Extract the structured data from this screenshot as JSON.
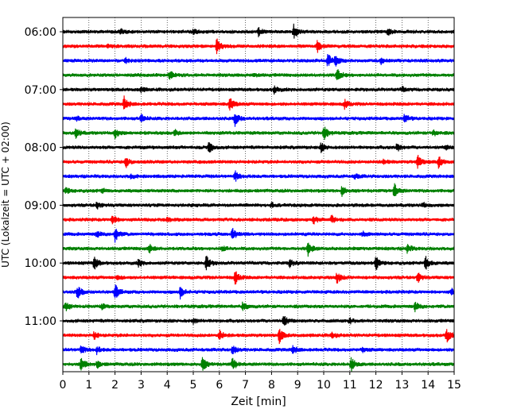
{
  "chart_data": {
    "type": "line",
    "title": "",
    "xlabel": "Zeit  [min]",
    "ylabel": "UTC (Lokalzeit = UTC + 02:00)",
    "xlim": [
      0,
      15
    ],
    "xticks": [
      0,
      1,
      2,
      3,
      4,
      5,
      6,
      7,
      8,
      9,
      10,
      11,
      12,
      13,
      14,
      15
    ],
    "xtick_labels": [
      "0",
      "1",
      "2",
      "3",
      "4",
      "5",
      "6",
      "7",
      "8",
      "9",
      "10",
      "11",
      "12",
      "13",
      "14",
      "15"
    ],
    "vertical_grid": true,
    "yticks": [
      {
        "label": "06:00",
        "trace": 0
      },
      {
        "label": "07:00",
        "trace": 4
      },
      {
        "label": "08:00",
        "trace": 8
      },
      {
        "label": "09:00",
        "trace": 12
      },
      {
        "label": "10:00",
        "trace": 16
      },
      {
        "label": "11:00",
        "trace": 20
      }
    ],
    "colors": [
      "#000000",
      "#ff0000",
      "#0000ff",
      "#008000"
    ],
    "traces": [
      {
        "start": "06:00",
        "color": "#000000",
        "events": [
          {
            "t": 8.85,
            "a": 1.0
          },
          {
            "t": 7.5,
            "a": 0.5
          },
          {
            "t": 12.45,
            "a": 0.6
          },
          {
            "t": 2.2,
            "a": 0.4
          },
          {
            "t": 5.0,
            "a": 0.3
          }
        ]
      },
      {
        "start": "06:15",
        "color": "#ff0000",
        "events": [
          {
            "t": 5.9,
            "a": 1.0
          },
          {
            "t": 9.75,
            "a": 0.8
          },
          {
            "t": 1.7,
            "a": 0.3
          }
        ]
      },
      {
        "start": "06:30",
        "color": "#0000ff",
        "events": [
          {
            "t": 10.15,
            "a": 1.0
          },
          {
            "t": 10.45,
            "a": 0.6
          },
          {
            "t": 12.2,
            "a": 0.4
          },
          {
            "t": 2.4,
            "a": 0.3
          }
        ]
      },
      {
        "start": "06:45",
        "color": "#008000",
        "events": [
          {
            "t": 10.5,
            "a": 1.0
          },
          {
            "t": 4.1,
            "a": 0.7
          },
          {
            "t": 7.3,
            "a": 0.3
          }
        ]
      },
      {
        "start": "07:00",
        "color": "#000000",
        "events": [
          {
            "t": 8.1,
            "a": 0.5
          },
          {
            "t": 3.0,
            "a": 0.3
          },
          {
            "t": 13.0,
            "a": 0.3
          }
        ]
      },
      {
        "start": "07:15",
        "color": "#ff0000",
        "events": [
          {
            "t": 2.35,
            "a": 1.0
          },
          {
            "t": 6.4,
            "a": 1.0
          },
          {
            "t": 10.8,
            "a": 0.6
          }
        ]
      },
      {
        "start": "07:30",
        "color": "#0000ff",
        "events": [
          {
            "t": 6.6,
            "a": 1.0
          },
          {
            "t": 3.0,
            "a": 0.6
          },
          {
            "t": 13.1,
            "a": 0.6
          },
          {
            "t": 0.5,
            "a": 0.3
          }
        ]
      },
      {
        "start": "07:45",
        "color": "#008000",
        "events": [
          {
            "t": 0.5,
            "a": 0.7
          },
          {
            "t": 2.0,
            "a": 0.7
          },
          {
            "t": 10.0,
            "a": 1.0
          },
          {
            "t": 4.3,
            "a": 0.4
          },
          {
            "t": 14.2,
            "a": 0.4
          }
        ]
      },
      {
        "start": "08:00",
        "color": "#000000",
        "events": [
          {
            "t": 5.6,
            "a": 1.0
          },
          {
            "t": 9.9,
            "a": 0.6
          },
          {
            "t": 12.8,
            "a": 0.6
          },
          {
            "t": 14.7,
            "a": 0.3
          }
        ]
      },
      {
        "start": "08:15",
        "color": "#ff0000",
        "events": [
          {
            "t": 2.4,
            "a": 0.8
          },
          {
            "t": 13.6,
            "a": 1.0
          },
          {
            "t": 14.4,
            "a": 0.8
          },
          {
            "t": 12.3,
            "a": 0.3
          }
        ]
      },
      {
        "start": "08:30",
        "color": "#0000ff",
        "events": [
          {
            "t": 6.6,
            "a": 0.7
          },
          {
            "t": 11.2,
            "a": 0.4
          },
          {
            "t": 2.6,
            "a": 0.3
          }
        ]
      },
      {
        "start": "08:45",
        "color": "#008000",
        "events": [
          {
            "t": 12.7,
            "a": 1.0
          },
          {
            "t": 10.7,
            "a": 0.7
          },
          {
            "t": 0.1,
            "a": 0.5
          },
          {
            "t": 1.5,
            "a": 0.3
          }
        ]
      },
      {
        "start": "09:00",
        "color": "#000000",
        "events": [
          {
            "t": 1.3,
            "a": 0.5
          },
          {
            "t": 8.0,
            "a": 0.3
          },
          {
            "t": 13.8,
            "a": 0.3
          }
        ]
      },
      {
        "start": "09:15",
        "color": "#ff0000",
        "events": [
          {
            "t": 1.9,
            "a": 0.7
          },
          {
            "t": 9.6,
            "a": 0.6
          },
          {
            "t": 10.3,
            "a": 0.5
          },
          {
            "t": 4.0,
            "a": 0.3
          }
        ]
      },
      {
        "start": "09:30",
        "color": "#0000ff",
        "events": [
          {
            "t": 2.0,
            "a": 1.0
          },
          {
            "t": 6.5,
            "a": 0.8
          },
          {
            "t": 1.3,
            "a": 0.4
          },
          {
            "t": 11.5,
            "a": 0.3
          }
        ]
      },
      {
        "start": "09:45",
        "color": "#008000",
        "events": [
          {
            "t": 9.4,
            "a": 1.0
          },
          {
            "t": 3.3,
            "a": 0.7
          },
          {
            "t": 13.2,
            "a": 0.6
          },
          {
            "t": 6.1,
            "a": 0.4
          }
        ]
      },
      {
        "start": "10:00",
        "color": "#000000",
        "events": [
          {
            "t": 1.2,
            "a": 0.9
          },
          {
            "t": 5.5,
            "a": 1.0
          },
          {
            "t": 12.0,
            "a": 1.0
          },
          {
            "t": 13.9,
            "a": 1.0
          },
          {
            "t": 2.9,
            "a": 0.5
          },
          {
            "t": 8.7,
            "a": 0.5
          }
        ]
      },
      {
        "start": "10:15",
        "color": "#ff0000",
        "events": [
          {
            "t": 6.6,
            "a": 1.0
          },
          {
            "t": 10.5,
            "a": 0.9
          },
          {
            "t": 13.6,
            "a": 0.7
          },
          {
            "t": 2.1,
            "a": 0.3
          }
        ]
      },
      {
        "start": "10:30",
        "color": "#0000ff",
        "events": [
          {
            "t": 0.55,
            "a": 1.0
          },
          {
            "t": 2.0,
            "a": 1.0
          },
          {
            "t": 4.5,
            "a": 0.8
          },
          {
            "t": 14.9,
            "a": 0.4
          }
        ]
      },
      {
        "start": "10:45",
        "color": "#008000",
        "events": [
          {
            "t": 0.1,
            "a": 0.6
          },
          {
            "t": 6.9,
            "a": 0.6
          },
          {
            "t": 13.5,
            "a": 0.6
          },
          {
            "t": 1.5,
            "a": 0.3
          }
        ]
      },
      {
        "start": "11:00",
        "color": "#000000",
        "events": [
          {
            "t": 8.45,
            "a": 0.8
          },
          {
            "t": 5.0,
            "a": 0.3
          },
          {
            "t": 11.0,
            "a": 0.3
          }
        ]
      },
      {
        "start": "11:15",
        "color": "#ff0000",
        "events": [
          {
            "t": 8.3,
            "a": 1.0
          },
          {
            "t": 14.7,
            "a": 1.0
          },
          {
            "t": 6.0,
            "a": 0.7
          },
          {
            "t": 1.2,
            "a": 0.5
          },
          {
            "t": 10.3,
            "a": 0.4
          }
        ]
      },
      {
        "start": "11:30",
        "color": "#0000ff",
        "events": [
          {
            "t": 0.7,
            "a": 0.6
          },
          {
            "t": 1.3,
            "a": 0.5
          },
          {
            "t": 6.5,
            "a": 0.6
          },
          {
            "t": 8.8,
            "a": 0.6
          },
          {
            "t": 11.5,
            "a": 0.3
          }
        ]
      },
      {
        "start": "11:45",
        "color": "#008000",
        "events": [
          {
            "t": 0.7,
            "a": 1.0
          },
          {
            "t": 5.35,
            "a": 1.0
          },
          {
            "t": 6.5,
            "a": 0.8
          },
          {
            "t": 11.05,
            "a": 1.0
          },
          {
            "t": 1.3,
            "a": 0.5
          }
        ]
      }
    ]
  }
}
